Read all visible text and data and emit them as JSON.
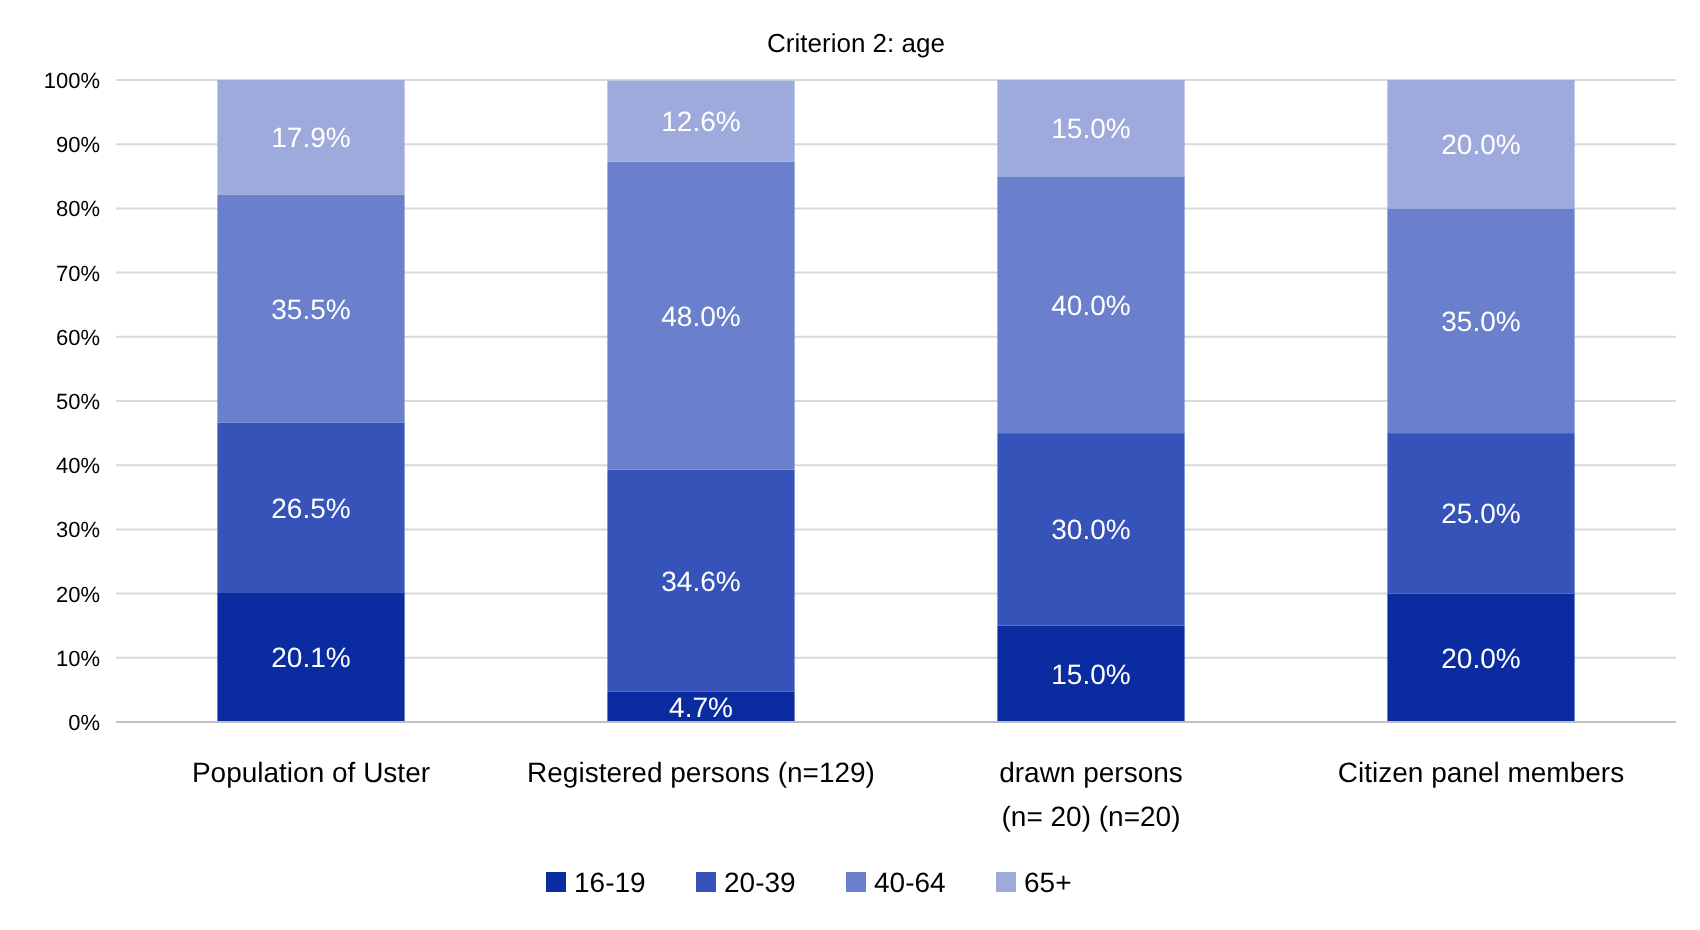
{
  "chart_data": {
    "type": "bar",
    "stacked": true,
    "title": "Criterion 2: age",
    "categories": [
      "Population of Uster",
      "Registered persons (n=129)",
      "drawn persons\n(n= 20) (n=20)",
      "Citizen panel members"
    ],
    "series": [
      {
        "name": "16-19",
        "color": "#0a2ca0",
        "values": [
          20.1,
          4.7,
          15.0,
          20.0
        ],
        "value_labels": [
          "20.1%",
          "4.7%",
          "15.0%",
          "20.0%"
        ]
      },
      {
        "name": "20-39",
        "color": "#3553b8",
        "values": [
          26.5,
          34.6,
          30.0,
          25.0
        ],
        "value_labels": [
          "26.5%",
          "34.6%",
          "30.0%",
          "25.0%"
        ]
      },
      {
        "name": "40-64",
        "color": "#6a80cc",
        "values": [
          35.5,
          48.0,
          40.0,
          35.0
        ],
        "value_labels": [
          "35.5%",
          "48.0%",
          "40.0%",
          "35.0%"
        ]
      },
      {
        "name": "65+",
        "color": "#9eaadc",
        "values": [
          17.9,
          12.6,
          15.0,
          20.0
        ],
        "value_labels": [
          "17.9%",
          "12.6%",
          "15.0%",
          "20.0%"
        ]
      }
    ],
    "ylim": [
      0,
      100
    ],
    "yticks": [
      {
        "value": 0,
        "label": "0%"
      },
      {
        "value": 10,
        "label": "10%"
      },
      {
        "value": 20,
        "label": "20%"
      },
      {
        "value": 30,
        "label": "30%"
      },
      {
        "value": 40,
        "label": "40%"
      },
      {
        "value": 50,
        "label": "50%"
      },
      {
        "value": 60,
        "label": "60%"
      },
      {
        "value": 70,
        "label": "70%"
      },
      {
        "value": 80,
        "label": "80%"
      },
      {
        "value": 90,
        "label": "90%"
      },
      {
        "value": 100,
        "label": "100%"
      }
    ],
    "grid": "y",
    "legend": "bottom"
  }
}
